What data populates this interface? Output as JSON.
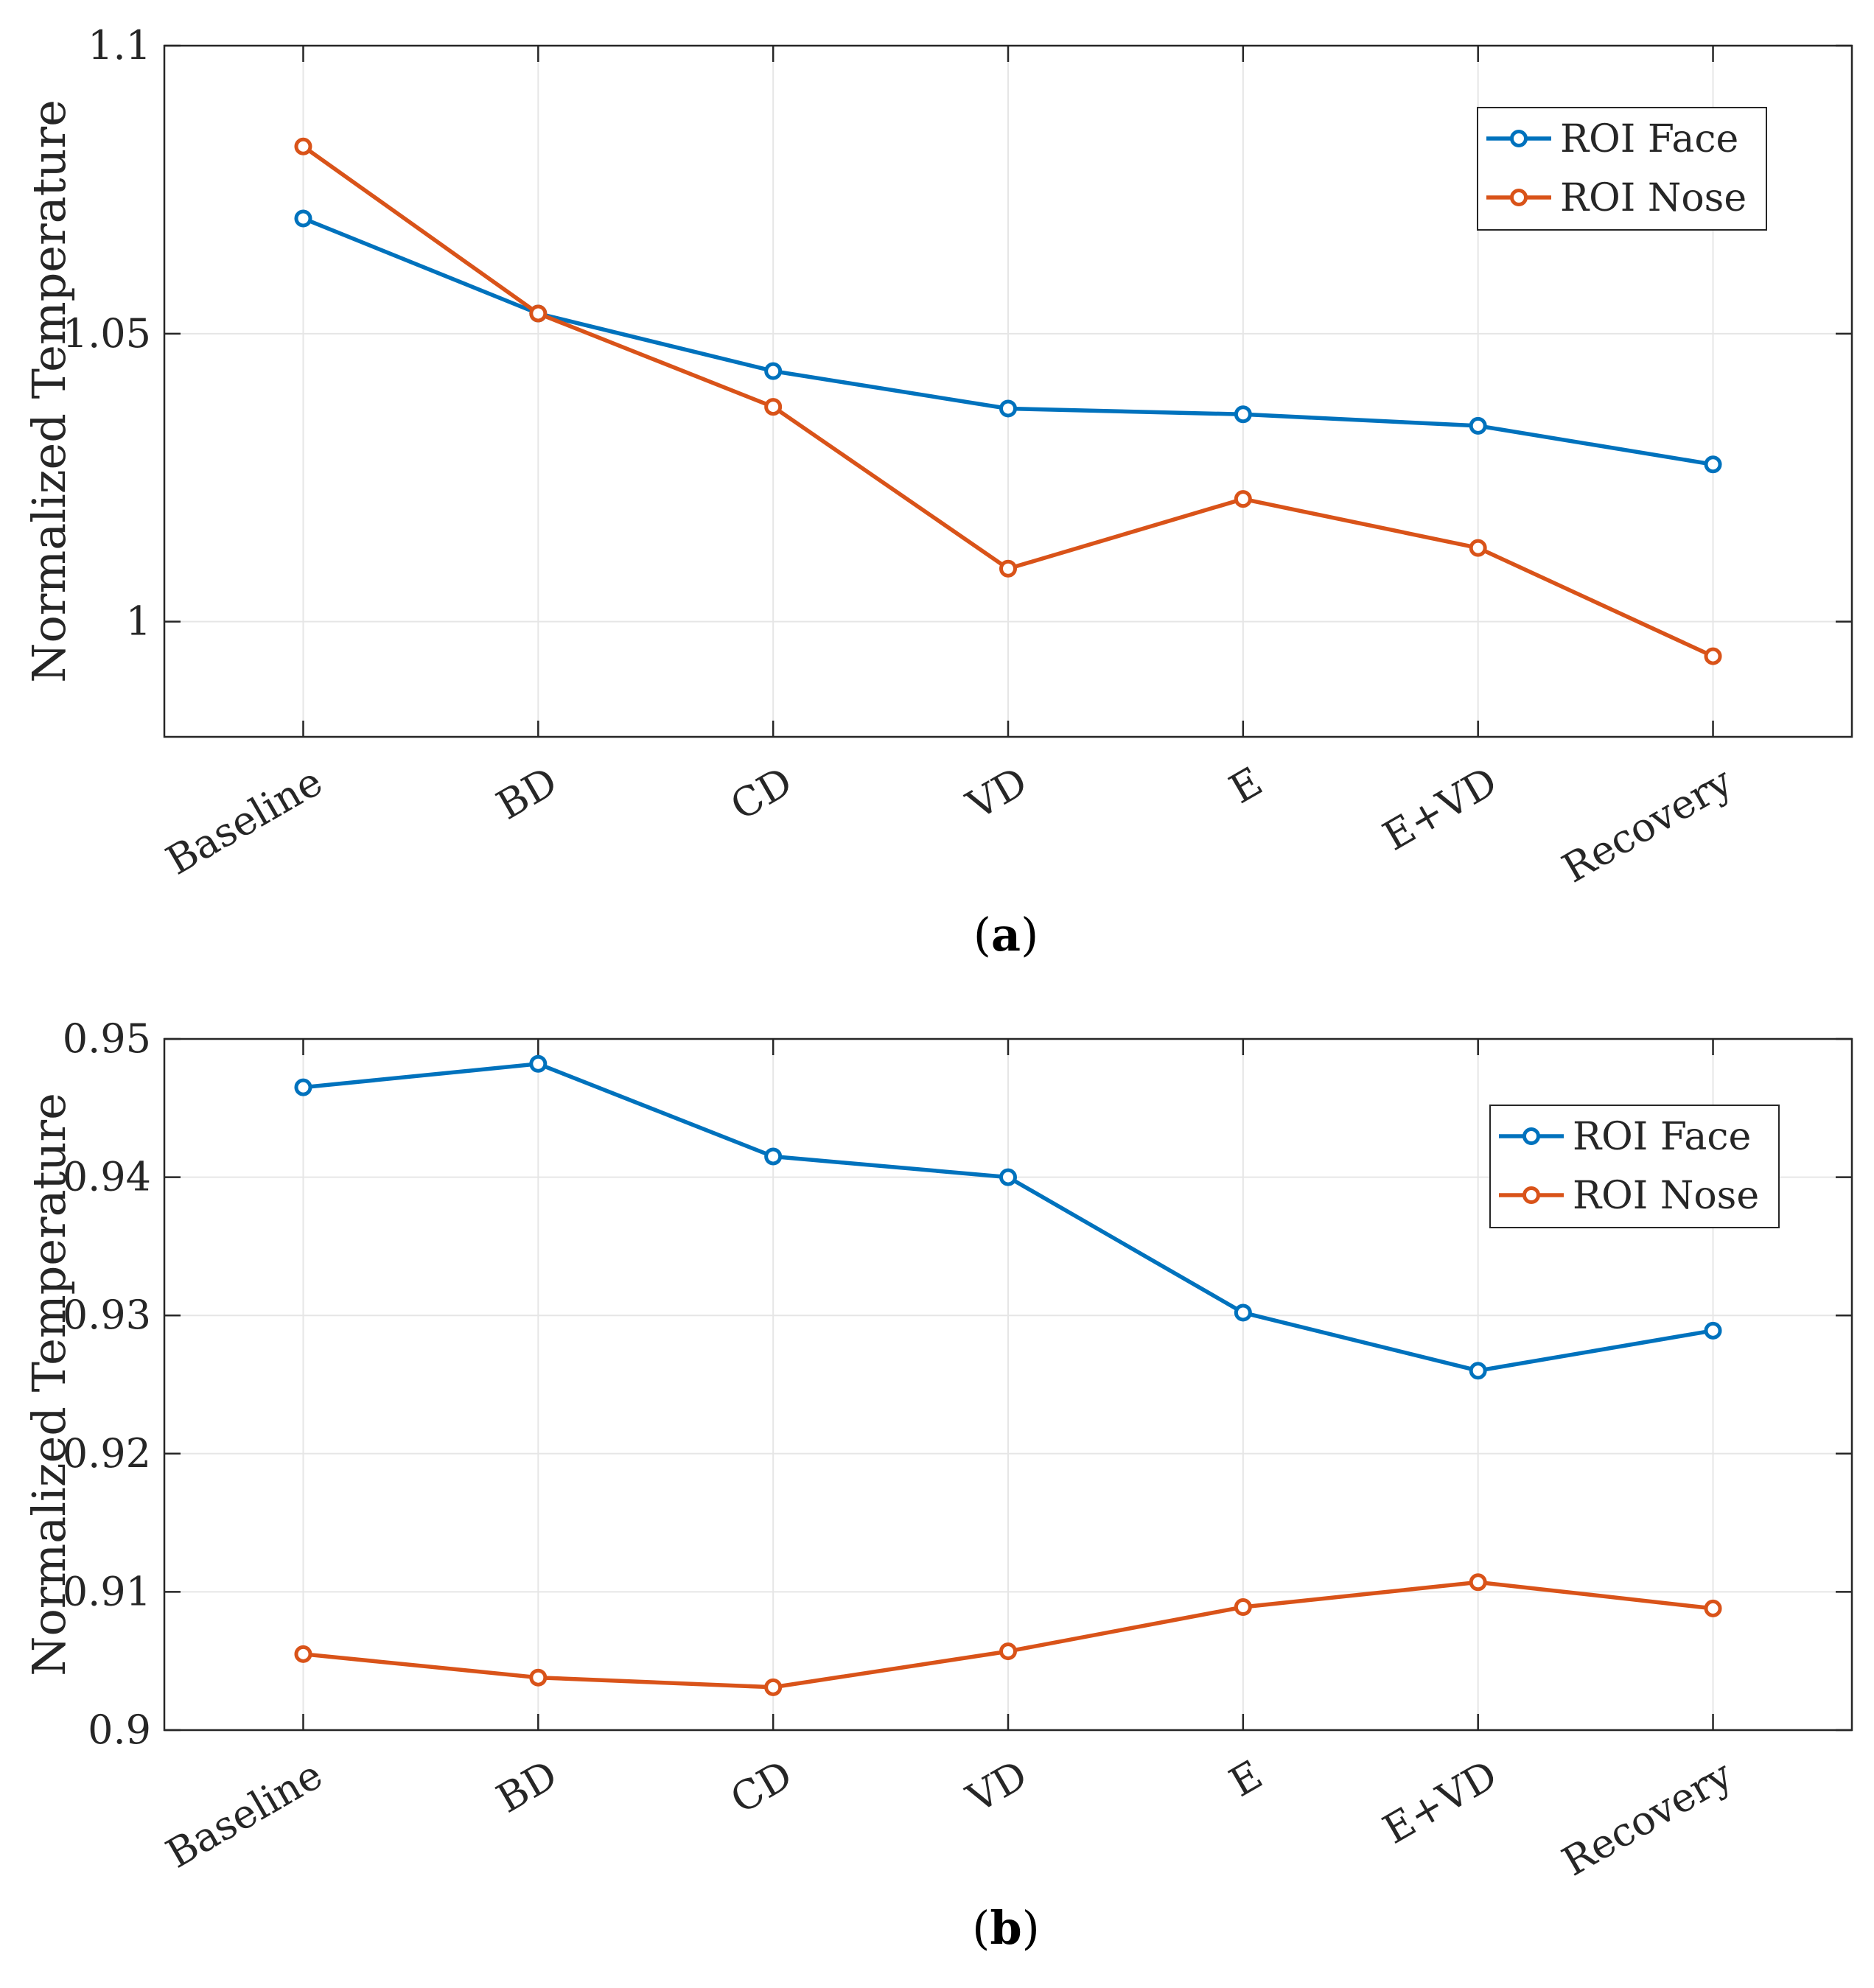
{
  "chart_data": [
    {
      "type": "line",
      "caption_letter": "a",
      "categories": [
        "Baseline",
        "BD",
        "CD",
        "VD",
        "E",
        "E+VD",
        "Recovery"
      ],
      "ylabel": "Normalized Temperature",
      "xlabel": "",
      "ylim": [
        0.98,
        1.1
      ],
      "yticks": [
        1,
        1.05,
        1.1
      ],
      "ytick_labels": [
        "1",
        "1.05",
        "1.1"
      ],
      "grid": true,
      "legend_position": "top-right",
      "series": [
        {
          "name": "ROI Face",
          "color": "#0072BD",
          "values": [
            1.07,
            1.0535,
            1.0435,
            1.037,
            1.036,
            1.034,
            1.0273
          ]
        },
        {
          "name": "ROI Nose",
          "color": "#D95319",
          "values": [
            1.0825,
            1.0535,
            1.0373,
            1.0092,
            1.0213,
            1.0128,
            0.994
          ]
        }
      ]
    },
    {
      "type": "line",
      "caption_letter": "b",
      "categories": [
        "Baseline",
        "BD",
        "CD",
        "VD",
        "E",
        "E+VD",
        "Recovery"
      ],
      "ylabel": "Normalized Temperature",
      "xlabel": "",
      "ylim": [
        0.9,
        0.95
      ],
      "yticks": [
        0.9,
        0.91,
        0.92,
        0.93,
        0.94,
        0.95
      ],
      "ytick_labels": [
        "0.9",
        "0.91",
        "0.92",
        "0.93",
        "0.94",
        "0.95"
      ],
      "grid": true,
      "legend_position": "top-right",
      "series": [
        {
          "name": "ROI Face",
          "color": "#0072BD",
          "values": [
            0.9465,
            0.9482,
            0.9415,
            0.94,
            0.9302,
            0.926,
            0.9289
          ]
        },
        {
          "name": "ROI Nose",
          "color": "#D95319",
          "values": [
            0.9055,
            0.9038,
            0.9031,
            0.9057,
            0.9089,
            0.9107,
            0.9088
          ]
        }
      ]
    }
  ]
}
